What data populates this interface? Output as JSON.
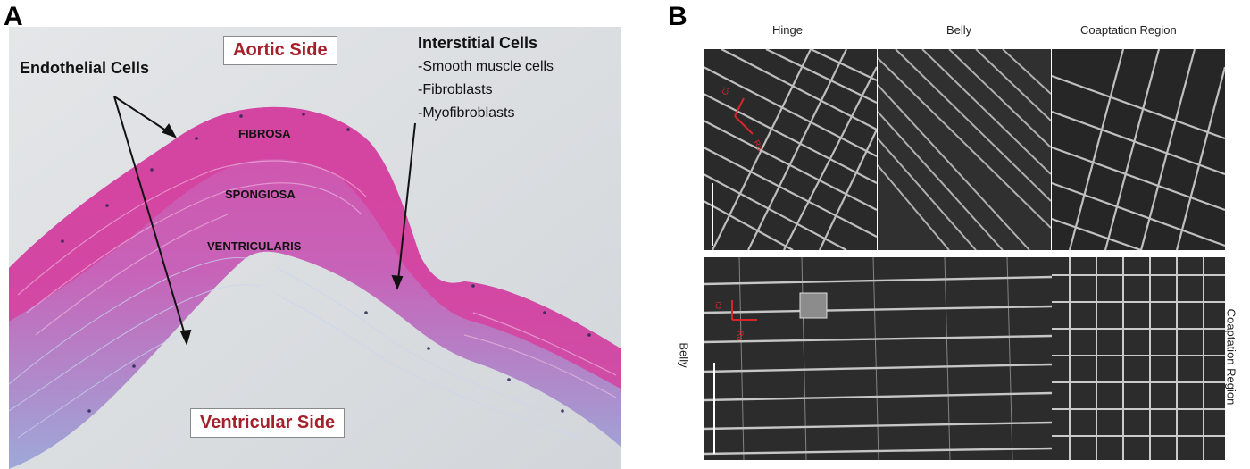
{
  "panel_a": {
    "letter": "A",
    "aortic_label": "Aortic Side",
    "ventricular_label": "Ventricular Side",
    "endothelial_label": "Endothelial Cells",
    "interstitial_title": "Interstitial Cells",
    "interstitial_items": [
      "-Smooth muscle cells",
      "-Fibroblasts",
      "-Myofibroblasts"
    ],
    "layers": {
      "fibrosa": "FIBROSA",
      "spongiosa": "SPONGIOSA",
      "ventricularis": "VENTRICULARIS"
    }
  },
  "panel_b": {
    "letter": "B",
    "columns": [
      "Hinge",
      "Belly",
      "Coaptation Region"
    ],
    "bottom_left_label": "Belly",
    "bottom_right_label": "Coaptation Region",
    "axis_top": {
      "a": "Ci",
      "b": "Ra"
    },
    "axis_bottom": {
      "a": "Ci",
      "b": "Ra"
    }
  },
  "colors": {
    "label_red": "#a5202a",
    "tissue_pink": "#cc4fb0",
    "tissue_blue": "#8ea8d6",
    "background": "#d9dde0",
    "axis_red": "#d8252a"
  }
}
